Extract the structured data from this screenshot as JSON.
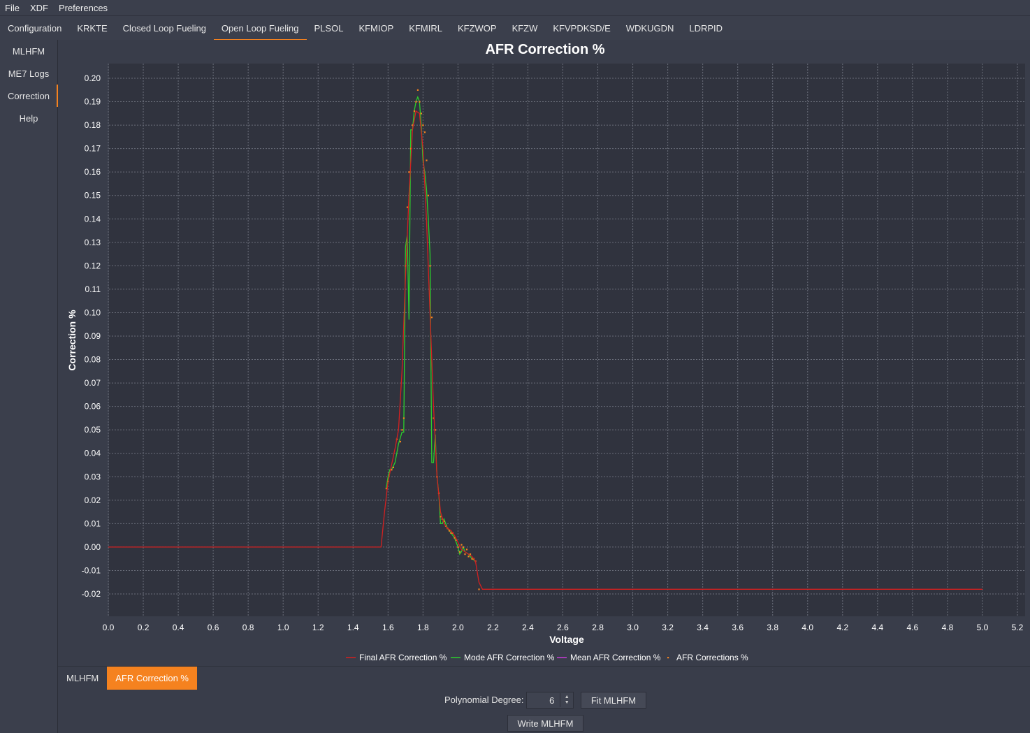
{
  "menu": [
    "File",
    "XDF",
    "Preferences"
  ],
  "tabs": [
    {
      "label": "Configuration"
    },
    {
      "label": "KRKTE"
    },
    {
      "label": "Closed Loop Fueling"
    },
    {
      "label": "Open Loop Fueling",
      "active": true
    },
    {
      "label": "PLSOL"
    },
    {
      "label": "KFMIOP"
    },
    {
      "label": "KFMIRL"
    },
    {
      "label": "KFZWOP"
    },
    {
      "label": "KFZW"
    },
    {
      "label": "KFVPDKSD/E"
    },
    {
      "label": "WDKUGDN"
    },
    {
      "label": "LDRPID"
    }
  ],
  "sidebar": [
    {
      "label": "MLHFM"
    },
    {
      "label": "ME7 Logs"
    },
    {
      "label": "Correction",
      "active": true
    },
    {
      "label": "Help"
    }
  ],
  "bottom_tabs": [
    {
      "label": "MLHFM"
    },
    {
      "label": "AFR Correction %",
      "active": true
    }
  ],
  "controls": {
    "poly_label": "Polynomial Degree:",
    "poly_value": "6",
    "fit_button": "Fit MLHFM",
    "write_button": "Write MLHFM"
  },
  "colors": {
    "accent": "#f5821f",
    "final": "#d42020",
    "mode": "#2ccf2c",
    "mean": "#c83cd8",
    "raw": "#f5821f"
  },
  "chart_data": {
    "type": "line",
    "title": "AFR Correction %",
    "xlabel": "Voltage",
    "ylabel": "Correction %",
    "xlim": [
      0.0,
      5.2
    ],
    "ylim": [
      -0.02,
      0.2
    ],
    "xticks": [
      "0.0",
      "0.2",
      "0.4",
      "0.6",
      "0.8",
      "1.0",
      "1.2",
      "1.4",
      "1.6",
      "1.8",
      "2.0",
      "2.2",
      "2.4",
      "2.6",
      "2.8",
      "3.0",
      "3.2",
      "3.4",
      "3.6",
      "3.8",
      "4.0",
      "4.2",
      "4.4",
      "4.6",
      "4.8",
      "5.0",
      "5.2"
    ],
    "yticks": [
      "0.20",
      "0.19",
      "0.18",
      "0.17",
      "0.16",
      "0.15",
      "0.14",
      "0.13",
      "0.12",
      "0.11",
      "0.10",
      "0.09",
      "0.08",
      "0.07",
      "0.06",
      "0.05",
      "0.04",
      "0.03",
      "0.02",
      "0.01",
      "0.00",
      "-0.01",
      "-0.02"
    ],
    "grid": true,
    "legend_position": "bottom",
    "series": [
      {
        "name": "Final AFR Correction %",
        "color_key": "final",
        "x": [
          0.0,
          1.56,
          1.58,
          1.6,
          1.62,
          1.64,
          1.66,
          1.68,
          1.7,
          1.72,
          1.74,
          1.76,
          1.78,
          1.8,
          1.82,
          1.84,
          1.86,
          1.88,
          1.9,
          1.92,
          1.94,
          1.96,
          1.98,
          2.0,
          2.02,
          2.04,
          2.06,
          2.08,
          2.1,
          2.12,
          2.14,
          5.0
        ],
        "y": [
          0.0,
          0.0,
          0.015,
          0.028,
          0.035,
          0.042,
          0.05,
          0.075,
          0.115,
          0.15,
          0.178,
          0.186,
          0.185,
          0.17,
          0.14,
          0.1,
          0.06,
          0.03,
          0.015,
          0.01,
          0.008,
          0.007,
          0.005,
          0.002,
          -0.001,
          -0.002,
          -0.003,
          -0.004,
          -0.006,
          -0.015,
          -0.018,
          -0.018
        ]
      },
      {
        "name": "Mode AFR Correction %",
        "color_key": "mode",
        "x": [
          1.59,
          1.6,
          1.61,
          1.62,
          1.64,
          1.66,
          1.68,
          1.69,
          1.7,
          1.71,
          1.72,
          1.73,
          1.74,
          1.75,
          1.76,
          1.77,
          1.78,
          1.79,
          1.8,
          1.81,
          1.82,
          1.83,
          1.84,
          1.85,
          1.86,
          1.87,
          1.88,
          1.89,
          1.9,
          1.91,
          1.92,
          1.94,
          1.96,
          1.98,
          2.0,
          2.01,
          2.02,
          2.03,
          2.04,
          2.06,
          2.08,
          2.1
        ],
        "y": [
          0.025,
          0.03,
          0.033,
          0.033,
          0.036,
          0.044,
          0.049,
          0.049,
          0.128,
          0.133,
          0.097,
          0.178,
          0.178,
          0.186,
          0.19,
          0.192,
          0.19,
          0.18,
          0.165,
          0.16,
          0.153,
          0.14,
          0.125,
          0.036,
          0.036,
          0.048,
          0.03,
          0.023,
          0.01,
          0.01,
          0.012,
          0.008,
          0.006,
          0.004,
          0.0,
          -0.003,
          -0.002,
          0.0,
          -0.002,
          -0.003,
          -0.005,
          -0.006
        ]
      },
      {
        "name": "Mean AFR Correction %",
        "color_key": "mean",
        "x": [],
        "y": []
      },
      {
        "name": "AFR Corrections %",
        "color_key": "raw",
        "scatter": true,
        "x": [
          1.59,
          1.6,
          1.62,
          1.63,
          1.65,
          1.67,
          1.68,
          1.69,
          1.7,
          1.71,
          1.72,
          1.73,
          1.74,
          1.75,
          1.76,
          1.77,
          1.78,
          1.79,
          1.8,
          1.81,
          1.82,
          1.83,
          1.84,
          1.85,
          1.86,
          1.87,
          1.88,
          1.89,
          1.9,
          1.91,
          1.92,
          1.93,
          1.94,
          1.95,
          1.96,
          1.97,
          1.98,
          1.99,
          2.0,
          2.01,
          2.02,
          2.03,
          2.04,
          2.05,
          2.06,
          2.07,
          2.08,
          2.09,
          2.1,
          2.12
        ],
        "y": [
          0.025,
          0.028,
          0.033,
          0.034,
          0.046,
          0.045,
          0.05,
          0.055,
          0.12,
          0.145,
          0.16,
          0.17,
          0.18,
          0.186,
          0.19,
          0.195,
          0.19,
          0.185,
          0.18,
          0.177,
          0.165,
          0.15,
          0.12,
          0.098,
          0.055,
          0.05,
          0.03,
          0.023,
          0.013,
          0.012,
          0.011,
          0.009,
          0.008,
          0.007,
          0.006,
          0.006,
          0.004,
          0.003,
          0.0,
          -0.002,
          0.001,
          0.0,
          -0.003,
          -0.001,
          -0.004,
          -0.003,
          -0.005,
          -0.005,
          -0.006,
          -0.018
        ]
      }
    ]
  }
}
